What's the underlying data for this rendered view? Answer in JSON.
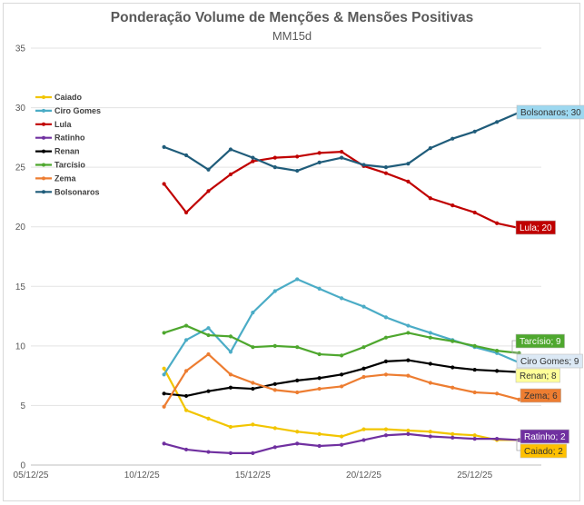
{
  "chart_data": {
    "type": "line",
    "title": "Ponderação Volume de Menções & Mensões Positivas",
    "subtitle": "MM15d",
    "xlabel": "",
    "ylabel": "",
    "ylim": [
      0,
      35
    ],
    "yticks": [
      0,
      5,
      10,
      15,
      20,
      25,
      30,
      35
    ],
    "xticks": [
      {
        "label": "05/12/25",
        "day": 0
      },
      {
        "label": "10/12/25",
        "day": 5
      },
      {
        "label": "15/12/25",
        "day": 10
      },
      {
        "label": "20/12/25",
        "day": 15
      },
      {
        "label": "25/12/25",
        "day": 20
      }
    ],
    "x_day_range": [
      0,
      23
    ],
    "x_days": [
      6,
      7,
      8,
      9,
      10,
      11,
      12,
      13,
      14,
      15,
      16,
      17,
      18,
      19,
      20,
      21,
      22
    ],
    "legend_position": "top-left",
    "series": [
      {
        "name": "Caiado",
        "color": "#F2C500",
        "label_bg": "#FFC000",
        "label_fg": "#333333",
        "end_label": "Caiado; 2",
        "values": [
          8.1,
          4.6,
          3.9,
          3.2,
          3.4,
          3.1,
          2.8,
          2.6,
          2.4,
          3.0,
          3.0,
          2.9,
          2.8,
          2.6,
          2.5,
          2.1,
          2.1
        ]
      },
      {
        "name": "Ciro Gomes",
        "color": "#4BACC6",
        "label_bg": "#DCE9F5",
        "label_fg": "#333333",
        "end_label": "Ciro Gomes; 9",
        "values": [
          7.6,
          10.5,
          11.5,
          9.5,
          12.8,
          14.6,
          15.6,
          14.8,
          14.0,
          13.3,
          12.4,
          11.7,
          11.1,
          10.5,
          9.9,
          9.4,
          8.6
        ]
      },
      {
        "name": "Lula",
        "color": "#C00000",
        "label_bg": "#C00000",
        "label_fg": "#FFFFFF",
        "end_label": "Lula; 20",
        "values": [
          23.6,
          21.2,
          23.0,
          24.4,
          25.5,
          25.8,
          25.9,
          26.2,
          26.3,
          25.1,
          24.5,
          23.8,
          22.4,
          21.8,
          21.2,
          20.3,
          19.9
        ]
      },
      {
        "name": "Ratinho",
        "color": "#7030A0",
        "label_bg": "#7030A0",
        "label_fg": "#FFFFFF",
        "end_label": "Ratinho; 2",
        "values": [
          1.8,
          1.3,
          1.1,
          1.0,
          1.0,
          1.5,
          1.8,
          1.6,
          1.7,
          2.1,
          2.5,
          2.6,
          2.4,
          2.3,
          2.2,
          2.2,
          2.1
        ]
      },
      {
        "name": "Renan",
        "color": "#000000",
        "label_bg": "#FFFF99",
        "label_fg": "#333333",
        "end_label": "Renan; 8",
        "values": [
          6.0,
          5.8,
          6.2,
          6.5,
          6.4,
          6.8,
          7.1,
          7.3,
          7.6,
          8.1,
          8.7,
          8.8,
          8.5,
          8.2,
          8.0,
          7.9,
          7.8
        ]
      },
      {
        "name": "Tarcísio",
        "color": "#4EA72E",
        "label_bg": "#4EA72E",
        "label_fg": "#FFFFFF",
        "end_label": "Tarcísio; 9",
        "values": [
          11.1,
          11.7,
          10.9,
          10.8,
          9.9,
          10.0,
          9.9,
          9.3,
          9.2,
          9.9,
          10.7,
          11.1,
          10.7,
          10.4,
          10.0,
          9.6,
          9.4
        ]
      },
      {
        "name": "Zema",
        "color": "#ED7D31",
        "label_bg": "#ED7D31",
        "label_fg": "#333333",
        "end_label": "Zema; 6",
        "values": [
          4.9,
          7.9,
          9.3,
          7.6,
          6.9,
          6.3,
          6.1,
          6.4,
          6.6,
          7.4,
          7.6,
          7.5,
          6.9,
          6.5,
          6.1,
          6.0,
          5.5
        ]
      },
      {
        "name": "Bolsonaros",
        "color": "#1F5C7A",
        "label_bg": "#9DD8F0",
        "label_fg": "#333333",
        "end_label": "Bolsonaros; 30",
        "values": [
          26.7,
          26.0,
          24.8,
          26.5,
          25.8,
          25.0,
          24.7,
          25.4,
          25.8,
          25.2,
          25.0,
          25.3,
          26.6,
          27.4,
          28.0,
          28.8,
          29.6
        ]
      }
    ]
  }
}
